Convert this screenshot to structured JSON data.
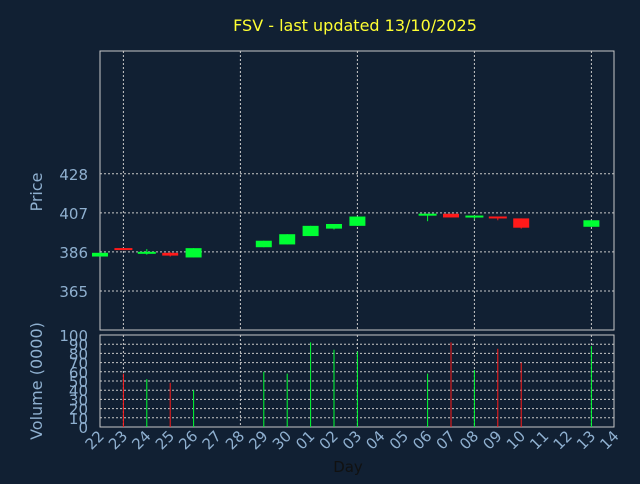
{
  "chart_data": [
    {
      "type": "candlestick",
      "title": "FSV - last updated 13/10/2025",
      "ylabel": "Price",
      "xlabel": "Day",
      "ylim": [
        344,
        494
      ],
      "yticks": [
        365,
        386,
        407,
        428
      ],
      "grid": true,
      "colors": {
        "up": "#00ff33",
        "down": "#ff1a1a",
        "title": "#ffff33",
        "text": "#8fb0d0",
        "frame": "#c8c8c8"
      },
      "categories": [
        "22",
        "23",
        "24",
        "25",
        "26",
        "27",
        "28",
        "29",
        "30",
        "01",
        "02",
        "03",
        "04",
        "05",
        "06",
        "07",
        "08",
        "09",
        "10",
        "11",
        "12",
        "13",
        "14"
      ],
      "candles": [
        {
          "day": "22",
          "open": 383.5,
          "high": 385.5,
          "low": 383.5,
          "close": 385.5
        },
        {
          "day": "23",
          "open": 387.5,
          "high": 388.0,
          "low": 387.0,
          "close": 387.0
        },
        {
          "day": "24",
          "open": 385.0,
          "high": 387.5,
          "low": 384.5,
          "close": 385.5
        },
        {
          "day": "25",
          "open": 385.5,
          "high": 385.8,
          "low": 383.5,
          "close": 384.0
        },
        {
          "day": "26",
          "open": 383.0,
          "high": 388.0,
          "low": 383.0,
          "close": 388.0
        },
        {
          "day": "29",
          "open": 388.5,
          "high": 392.0,
          "low": 388.5,
          "close": 392.0
        },
        {
          "day": "30",
          "open": 390.0,
          "high": 395.5,
          "low": 390.0,
          "close": 395.5
        },
        {
          "day": "01",
          "open": 394.5,
          "high": 400.0,
          "low": 394.5,
          "close": 400.0
        },
        {
          "day": "02",
          "open": 398.5,
          "high": 401.0,
          "low": 398.0,
          "close": 401.0
        },
        {
          "day": "03",
          "open": 400.0,
          "high": 405.0,
          "low": 400.0,
          "close": 405.0
        },
        {
          "day": "06",
          "open": 405.0,
          "high": 406.0,
          "low": 402.5,
          "close": 406.0
        },
        {
          "day": "07",
          "open": 406.5,
          "high": 406.5,
          "low": 404.5,
          "close": 404.5
        },
        {
          "day": "08",
          "open": 404.5,
          "high": 405.5,
          "low": 403.5,
          "close": 405.0
        },
        {
          "day": "09",
          "open": 404.5,
          "high": 405.0,
          "low": 403.0,
          "close": 403.5
        },
        {
          "day": "10",
          "open": 404.0,
          "high": 404.0,
          "low": 398.5,
          "close": 399.0
        },
        {
          "day": "13",
          "open": 399.5,
          "high": 403.0,
          "low": 399.5,
          "close": 403.0
        }
      ]
    },
    {
      "type": "bar",
      "ylabel": "Volume (0000)",
      "ylim": [
        0,
        100
      ],
      "yticks": [
        0,
        10,
        20,
        30,
        40,
        50,
        60,
        70,
        80,
        90,
        100
      ],
      "grid": true,
      "volumes": [
        {
          "day": "23",
          "value": 58,
          "direction": "down"
        },
        {
          "day": "24",
          "value": 52,
          "direction": "up"
        },
        {
          "day": "25",
          "value": 48,
          "direction": "down"
        },
        {
          "day": "26",
          "value": 40,
          "direction": "up"
        },
        {
          "day": "29",
          "value": 60,
          "direction": "up"
        },
        {
          "day": "30",
          "value": 58,
          "direction": "up"
        },
        {
          "day": "01",
          "value": 92,
          "direction": "up"
        },
        {
          "day": "02",
          "value": 84,
          "direction": "up"
        },
        {
          "day": "03",
          "value": 82,
          "direction": "up"
        },
        {
          "day": "06",
          "value": 58,
          "direction": "up"
        },
        {
          "day": "07",
          "value": 92,
          "direction": "down"
        },
        {
          "day": "08",
          "value": 62,
          "direction": "up"
        },
        {
          "day": "09",
          "value": 85,
          "direction": "down"
        },
        {
          "day": "10",
          "value": 70,
          "direction": "down"
        },
        {
          "day": "13",
          "value": 88,
          "direction": "up"
        }
      ]
    }
  ]
}
